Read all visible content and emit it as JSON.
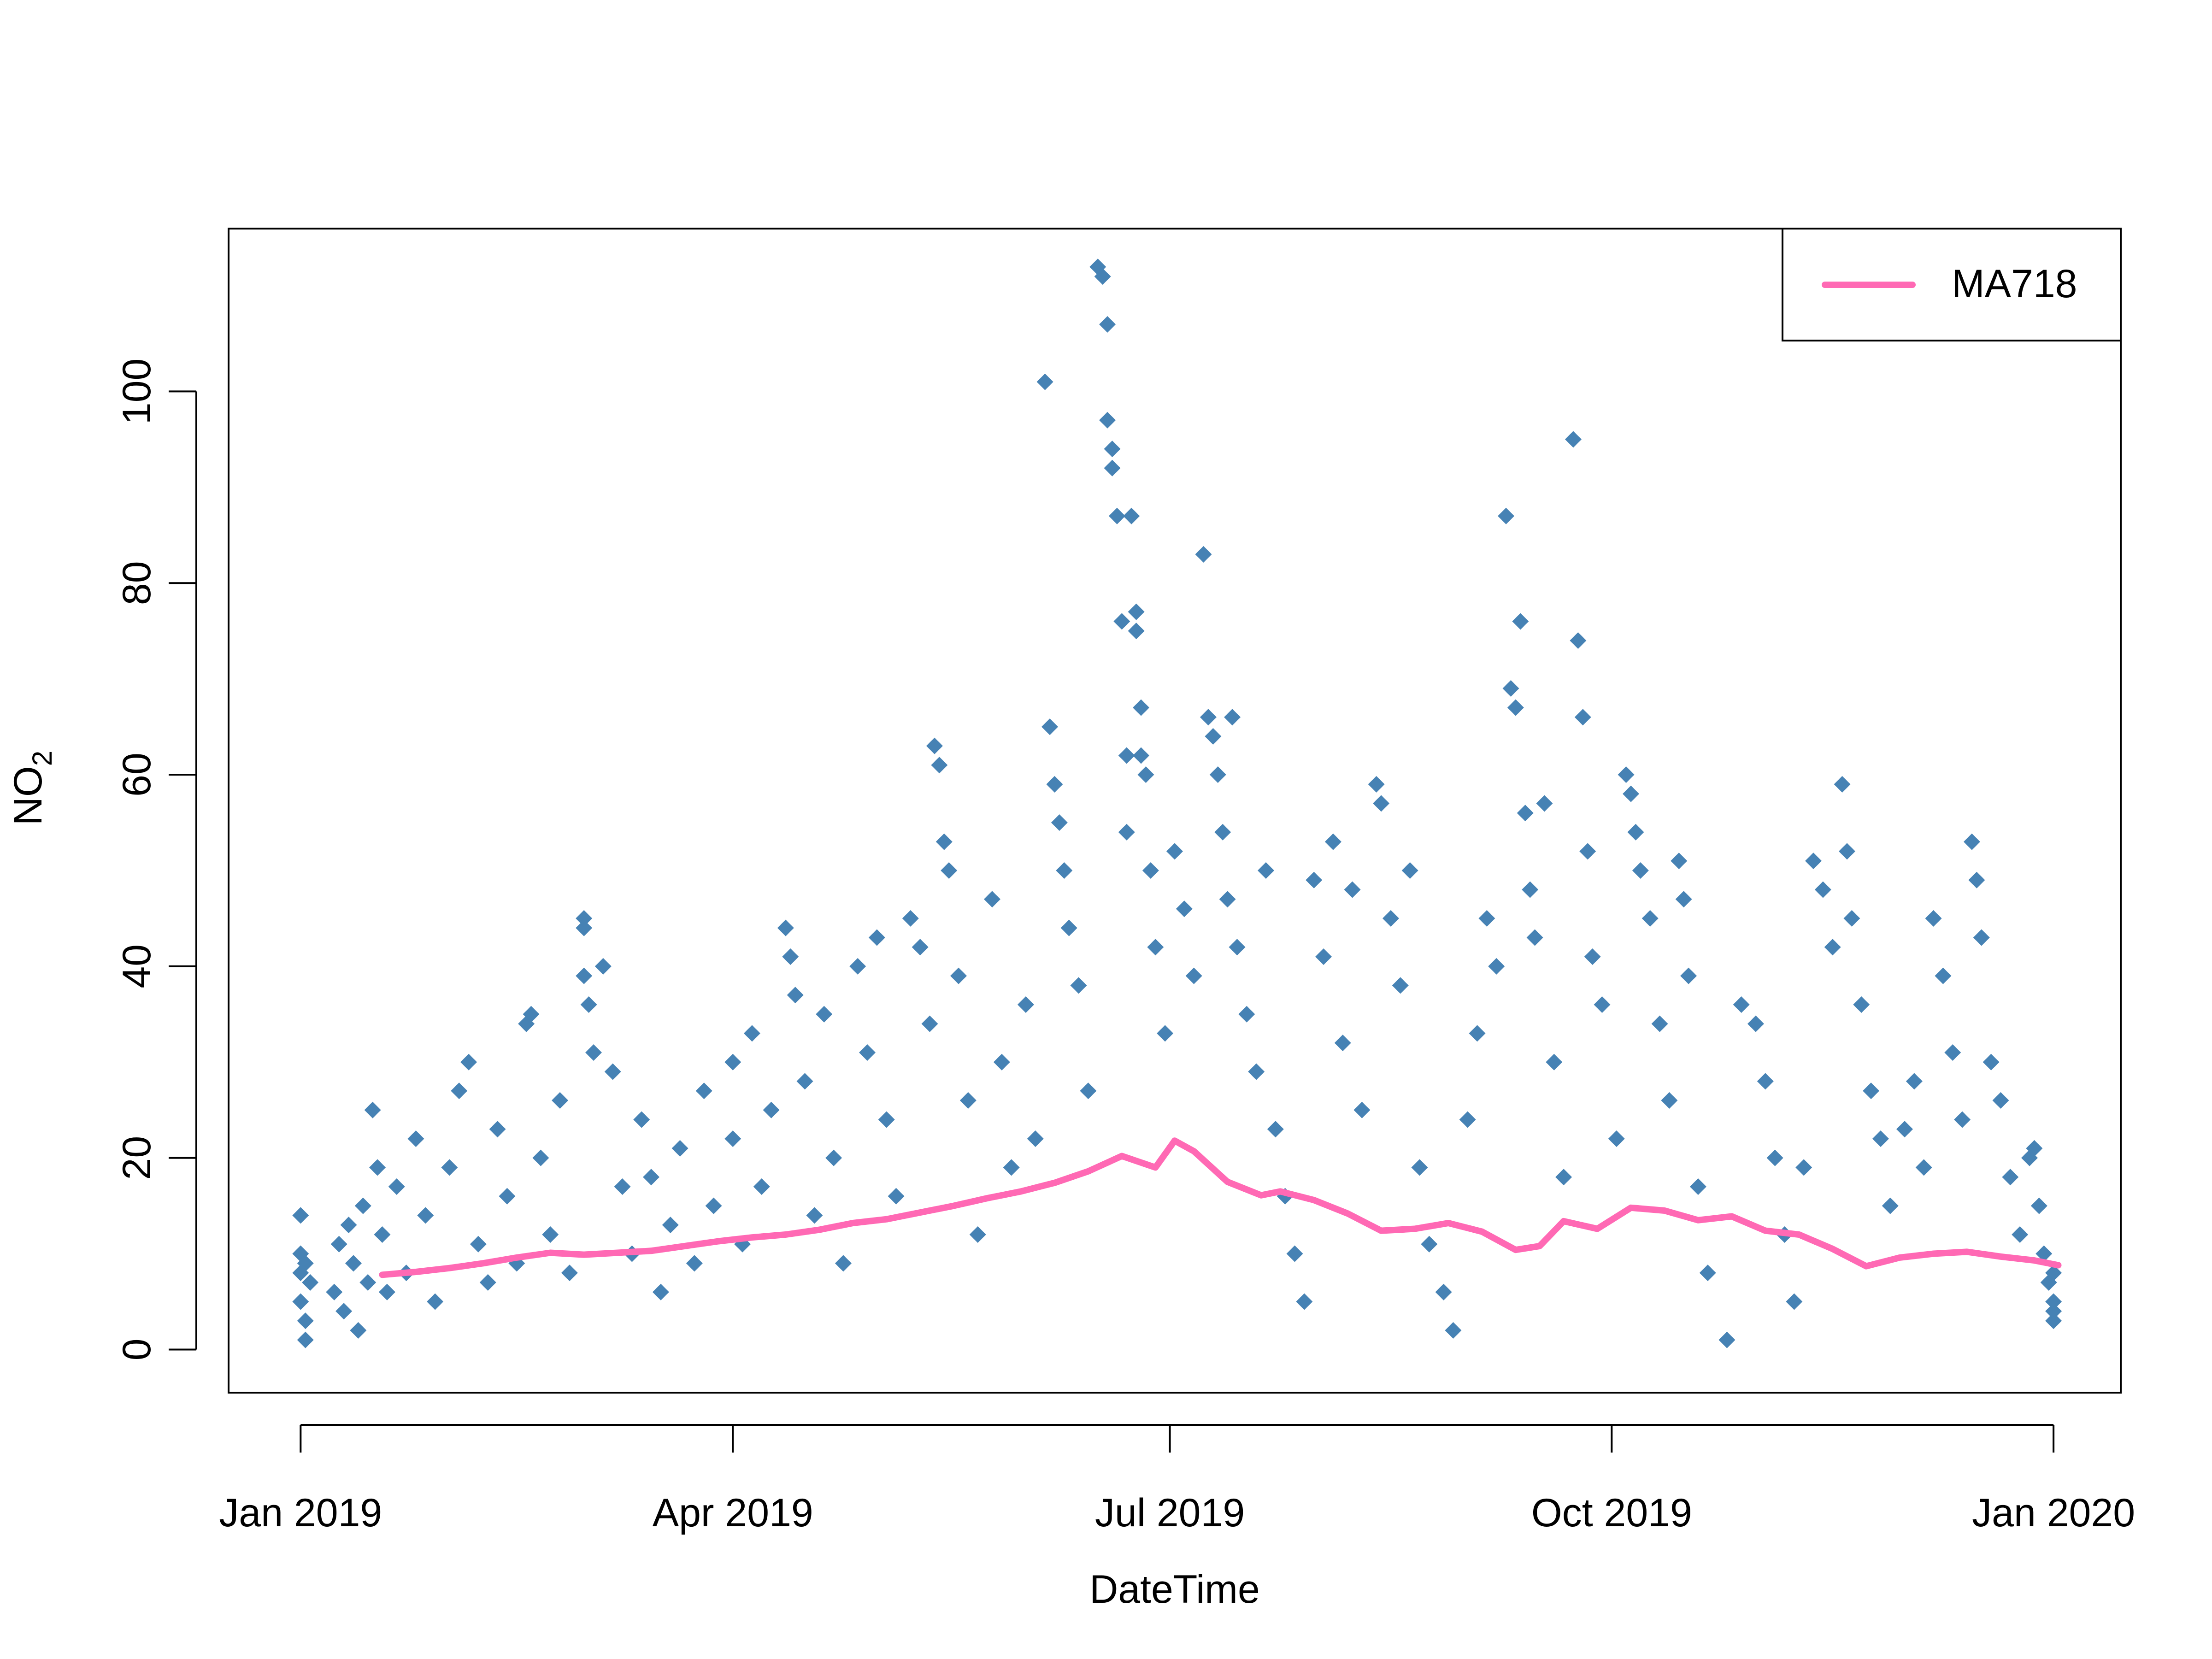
{
  "chart_data": {
    "type": "scatter",
    "title": "",
    "xlabel": "DateTime",
    "ylabel": "NO",
    "ylabel_subscript": "2",
    "x_axis_kind": "date",
    "xlim": [
      "2018-12-17",
      "2020-01-15"
    ],
    "ylim": [
      -4.5,
      117
    ],
    "x_ticks": [
      {
        "date": "2019-01-01",
        "label": "Jan 2019"
      },
      {
        "date": "2019-04-01",
        "label": "Apr 2019"
      },
      {
        "date": "2019-07-01",
        "label": "Jul 2019"
      },
      {
        "date": "2019-10-01",
        "label": "Oct 2019"
      },
      {
        "date": "2020-01-01",
        "label": "Jan 2020"
      }
    ],
    "y_ticks": [
      {
        "value": 0,
        "label": "0"
      },
      {
        "value": 20,
        "label": "20"
      },
      {
        "value": 40,
        "label": "40"
      },
      {
        "value": 60,
        "label": "60"
      },
      {
        "value": 80,
        "label": "80"
      },
      {
        "value": 100,
        "label": "100"
      }
    ],
    "legend": {
      "position": "top-right",
      "entries": [
        {
          "label": "MA718",
          "color": "#FF69B4"
        }
      ]
    },
    "colors": {
      "points": "#4682B4",
      "moving_average": "#FF69B4"
    },
    "grid": false,
    "series": [
      {
        "name": "NO2 readings",
        "mark": "diamond",
        "points": [
          [
            "2019-01-01",
            14
          ],
          [
            "2019-01-01",
            10
          ],
          [
            "2019-01-01",
            8
          ],
          [
            "2019-01-01",
            5
          ],
          [
            "2019-01-02",
            3
          ],
          [
            "2019-01-02",
            1
          ],
          [
            "2019-01-02",
            9
          ],
          [
            "2019-01-03",
            7
          ],
          [
            "2019-01-08",
            6
          ],
          [
            "2019-01-09",
            11
          ],
          [
            "2019-01-10",
            4
          ],
          [
            "2019-01-11",
            13
          ],
          [
            "2019-01-12",
            9
          ],
          [
            "2019-01-13",
            2
          ],
          [
            "2019-01-14",
            15
          ],
          [
            "2019-01-15",
            7
          ],
          [
            "2019-01-16",
            25
          ],
          [
            "2019-01-17",
            19
          ],
          [
            "2019-01-18",
            12
          ],
          [
            "2019-01-19",
            6
          ],
          [
            "2019-01-21",
            17
          ],
          [
            "2019-01-23",
            8
          ],
          [
            "2019-01-25",
            22
          ],
          [
            "2019-01-27",
            14
          ],
          [
            "2019-01-29",
            5
          ],
          [
            "2019-02-01",
            19
          ],
          [
            "2019-02-03",
            27
          ],
          [
            "2019-02-05",
            30
          ],
          [
            "2019-02-07",
            11
          ],
          [
            "2019-02-09",
            7
          ],
          [
            "2019-02-11",
            23
          ],
          [
            "2019-02-13",
            16
          ],
          [
            "2019-02-15",
            9
          ],
          [
            "2019-02-17",
            34
          ],
          [
            "2019-02-18",
            35
          ],
          [
            "2019-02-20",
            20
          ],
          [
            "2019-02-22",
            12
          ],
          [
            "2019-02-24",
            26
          ],
          [
            "2019-02-26",
            8
          ],
          [
            "2019-03-01",
            39
          ],
          [
            "2019-03-01",
            44
          ],
          [
            "2019-03-01",
            45
          ],
          [
            "2019-03-02",
            36
          ],
          [
            "2019-03-03",
            31
          ],
          [
            "2019-03-05",
            40
          ],
          [
            "2019-03-07",
            29
          ],
          [
            "2019-03-09",
            17
          ],
          [
            "2019-03-11",
            10
          ],
          [
            "2019-03-13",
            24
          ],
          [
            "2019-03-15",
            18
          ],
          [
            "2019-03-17",
            6
          ],
          [
            "2019-03-19",
            13
          ],
          [
            "2019-03-21",
            21
          ],
          [
            "2019-03-24",
            9
          ],
          [
            "2019-03-26",
            27
          ],
          [
            "2019-03-28",
            15
          ],
          [
            "2019-04-01",
            30
          ],
          [
            "2019-04-01",
            22
          ],
          [
            "2019-04-03",
            11
          ],
          [
            "2019-04-05",
            33
          ],
          [
            "2019-04-07",
            17
          ],
          [
            "2019-04-09",
            25
          ],
          [
            "2019-04-12",
            44
          ],
          [
            "2019-04-13",
            41
          ],
          [
            "2019-04-14",
            37
          ],
          [
            "2019-04-16",
            28
          ],
          [
            "2019-04-18",
            14
          ],
          [
            "2019-04-20",
            35
          ],
          [
            "2019-04-22",
            20
          ],
          [
            "2019-04-24",
            9
          ],
          [
            "2019-04-27",
            40
          ],
          [
            "2019-04-29",
            31
          ],
          [
            "2019-05-01",
            43
          ],
          [
            "2019-05-03",
            24
          ],
          [
            "2019-05-05",
            16
          ],
          [
            "2019-05-08",
            45
          ],
          [
            "2019-05-10",
            42
          ],
          [
            "2019-05-12",
            34
          ],
          [
            "2019-05-13",
            63
          ],
          [
            "2019-05-14",
            61
          ],
          [
            "2019-05-15",
            53
          ],
          [
            "2019-05-16",
            50
          ],
          [
            "2019-05-18",
            39
          ],
          [
            "2019-05-20",
            26
          ],
          [
            "2019-05-22",
            12
          ],
          [
            "2019-05-25",
            47
          ],
          [
            "2019-05-27",
            30
          ],
          [
            "2019-05-29",
            19
          ],
          [
            "2019-06-01",
            36
          ],
          [
            "2019-06-03",
            22
          ],
          [
            "2019-06-05",
            101
          ],
          [
            "2019-06-06",
            65
          ],
          [
            "2019-06-07",
            59
          ],
          [
            "2019-06-08",
            55
          ],
          [
            "2019-06-09",
            50
          ],
          [
            "2019-06-10",
            44
          ],
          [
            "2019-06-12",
            38
          ],
          [
            "2019-06-14",
            27
          ],
          [
            "2019-06-16",
            113
          ],
          [
            "2019-06-17",
            112
          ],
          [
            "2019-06-18",
            107
          ],
          [
            "2019-06-18",
            97
          ],
          [
            "2019-06-19",
            94
          ],
          [
            "2019-06-19",
            92
          ],
          [
            "2019-06-20",
            87
          ],
          [
            "2019-06-21",
            76
          ],
          [
            "2019-06-22",
            62
          ],
          [
            "2019-06-22",
            54
          ],
          [
            "2019-06-23",
            87
          ],
          [
            "2019-06-24",
            77
          ],
          [
            "2019-06-24",
            75
          ],
          [
            "2019-06-25",
            67
          ],
          [
            "2019-06-25",
            62
          ],
          [
            "2019-06-26",
            60
          ],
          [
            "2019-06-27",
            50
          ],
          [
            "2019-06-28",
            42
          ],
          [
            "2019-06-30",
            33
          ],
          [
            "2019-07-02",
            52
          ],
          [
            "2019-07-04",
            46
          ],
          [
            "2019-07-06",
            39
          ],
          [
            "2019-07-08",
            83
          ],
          [
            "2019-07-09",
            66
          ],
          [
            "2019-07-10",
            64
          ],
          [
            "2019-07-11",
            60
          ],
          [
            "2019-07-12",
            54
          ],
          [
            "2019-07-13",
            47
          ],
          [
            "2019-07-14",
            66
          ],
          [
            "2019-07-15",
            42
          ],
          [
            "2019-07-17",
            35
          ],
          [
            "2019-07-19",
            29
          ],
          [
            "2019-07-21",
            50
          ],
          [
            "2019-07-23",
            23
          ],
          [
            "2019-07-25",
            16
          ],
          [
            "2019-07-27",
            10
          ],
          [
            "2019-07-29",
            5
          ],
          [
            "2019-07-31",
            49
          ],
          [
            "2019-08-02",
            41
          ],
          [
            "2019-08-04",
            53
          ],
          [
            "2019-08-06",
            32
          ],
          [
            "2019-08-08",
            48
          ],
          [
            "2019-08-10",
            25
          ],
          [
            "2019-08-13",
            59
          ],
          [
            "2019-08-14",
            57
          ],
          [
            "2019-08-16",
            45
          ],
          [
            "2019-08-18",
            38
          ],
          [
            "2019-08-20",
            50
          ],
          [
            "2019-08-22",
            19
          ],
          [
            "2019-08-24",
            11
          ],
          [
            "2019-08-27",
            6
          ],
          [
            "2019-08-29",
            2
          ],
          [
            "2019-09-01",
            24
          ],
          [
            "2019-09-03",
            33
          ],
          [
            "2019-09-05",
            45
          ],
          [
            "2019-09-07",
            40
          ],
          [
            "2019-09-09",
            87
          ],
          [
            "2019-09-10",
            69
          ],
          [
            "2019-09-11",
            67
          ],
          [
            "2019-09-12",
            76
          ],
          [
            "2019-09-13",
            56
          ],
          [
            "2019-09-14",
            48
          ],
          [
            "2019-09-15",
            43
          ],
          [
            "2019-09-17",
            57
          ],
          [
            "2019-09-19",
            30
          ],
          [
            "2019-09-21",
            18
          ],
          [
            "2019-09-23",
            95
          ],
          [
            "2019-09-24",
            74
          ],
          [
            "2019-09-25",
            66
          ],
          [
            "2019-09-26",
            52
          ],
          [
            "2019-09-27",
            41
          ],
          [
            "2019-09-29",
            36
          ],
          [
            "2019-10-02",
            22
          ],
          [
            "2019-10-04",
            60
          ],
          [
            "2019-10-05",
            58
          ],
          [
            "2019-10-06",
            54
          ],
          [
            "2019-10-07",
            50
          ],
          [
            "2019-10-09",
            45
          ],
          [
            "2019-10-11",
            34
          ],
          [
            "2019-10-13",
            26
          ],
          [
            "2019-10-15",
            51
          ],
          [
            "2019-10-16",
            47
          ],
          [
            "2019-10-17",
            39
          ],
          [
            "2019-10-19",
            17
          ],
          [
            "2019-10-21",
            8
          ],
          [
            "2019-10-25",
            1
          ],
          [
            "2019-10-28",
            36
          ],
          [
            "2019-10-31",
            34
          ],
          [
            "2019-11-02",
            28
          ],
          [
            "2019-11-04",
            20
          ],
          [
            "2019-11-06",
            12
          ],
          [
            "2019-11-08",
            5
          ],
          [
            "2019-11-10",
            19
          ],
          [
            "2019-11-12",
            51
          ],
          [
            "2019-11-14",
            48
          ],
          [
            "2019-11-16",
            42
          ],
          [
            "2019-11-18",
            59
          ],
          [
            "2019-11-19",
            52
          ],
          [
            "2019-11-20",
            45
          ],
          [
            "2019-11-22",
            36
          ],
          [
            "2019-11-24",
            27
          ],
          [
            "2019-11-26",
            22
          ],
          [
            "2019-11-28",
            15
          ],
          [
            "2019-12-01",
            23
          ],
          [
            "2019-12-03",
            28
          ],
          [
            "2019-12-05",
            19
          ],
          [
            "2019-12-07",
            45
          ],
          [
            "2019-12-09",
            39
          ],
          [
            "2019-12-11",
            31
          ],
          [
            "2019-12-13",
            24
          ],
          [
            "2019-12-15",
            53
          ],
          [
            "2019-12-16",
            49
          ],
          [
            "2019-12-17",
            43
          ],
          [
            "2019-12-19",
            30
          ],
          [
            "2019-12-21",
            26
          ],
          [
            "2019-12-23",
            18
          ],
          [
            "2019-12-25",
            12
          ],
          [
            "2019-12-27",
            20
          ],
          [
            "2019-12-28",
            21
          ],
          [
            "2019-12-29",
            15
          ],
          [
            "2019-12-30",
            10
          ],
          [
            "2019-12-31",
            7
          ],
          [
            "2020-01-01",
            5
          ],
          [
            "2020-01-01",
            3
          ],
          [
            "2020-01-01",
            8
          ],
          [
            "2020-01-01",
            4
          ]
        ]
      },
      {
        "name": "MA718",
        "mark": "line",
        "points": [
          [
            "2019-01-18",
            7.8
          ],
          [
            "2019-01-25",
            8.1
          ],
          [
            "2019-02-01",
            8.5
          ],
          [
            "2019-02-08",
            9.0
          ],
          [
            "2019-02-15",
            9.6
          ],
          [
            "2019-02-22",
            10.1
          ],
          [
            "2019-03-01",
            9.9
          ],
          [
            "2019-03-08",
            10.1
          ],
          [
            "2019-03-15",
            10.3
          ],
          [
            "2019-03-22",
            10.8
          ],
          [
            "2019-03-29",
            11.3
          ],
          [
            "2019-04-05",
            11.7
          ],
          [
            "2019-04-12",
            12.0
          ],
          [
            "2019-04-19",
            12.5
          ],
          [
            "2019-04-26",
            13.2
          ],
          [
            "2019-05-03",
            13.6
          ],
          [
            "2019-05-10",
            14.3
          ],
          [
            "2019-05-17",
            15.0
          ],
          [
            "2019-05-24",
            15.8
          ],
          [
            "2019-05-31",
            16.5
          ],
          [
            "2019-06-07",
            17.4
          ],
          [
            "2019-06-14",
            18.6
          ],
          [
            "2019-06-21",
            20.2
          ],
          [
            "2019-06-28",
            19.0
          ],
          [
            "2019-07-02",
            21.8
          ],
          [
            "2019-07-06",
            20.7
          ],
          [
            "2019-07-13",
            17.5
          ],
          [
            "2019-07-20",
            16.1
          ],
          [
            "2019-07-24",
            16.5
          ],
          [
            "2019-07-31",
            15.6
          ],
          [
            "2019-08-07",
            14.2
          ],
          [
            "2019-08-14",
            12.4
          ],
          [
            "2019-08-21",
            12.6
          ],
          [
            "2019-08-28",
            13.2
          ],
          [
            "2019-09-04",
            12.3
          ],
          [
            "2019-09-11",
            10.4
          ],
          [
            "2019-09-16",
            10.8
          ],
          [
            "2019-09-21",
            13.4
          ],
          [
            "2019-09-28",
            12.6
          ],
          [
            "2019-10-05",
            14.8
          ],
          [
            "2019-10-12",
            14.5
          ],
          [
            "2019-10-19",
            13.5
          ],
          [
            "2019-10-26",
            13.9
          ],
          [
            "2019-11-02",
            12.4
          ],
          [
            "2019-11-09",
            12.0
          ],
          [
            "2019-11-16",
            10.5
          ],
          [
            "2019-11-23",
            8.7
          ],
          [
            "2019-11-30",
            9.6
          ],
          [
            "2019-12-07",
            10.0
          ],
          [
            "2019-12-14",
            10.2
          ],
          [
            "2019-12-21",
            9.7
          ],
          [
            "2019-12-28",
            9.3
          ],
          [
            "2020-01-02",
            8.8
          ]
        ]
      }
    ]
  }
}
